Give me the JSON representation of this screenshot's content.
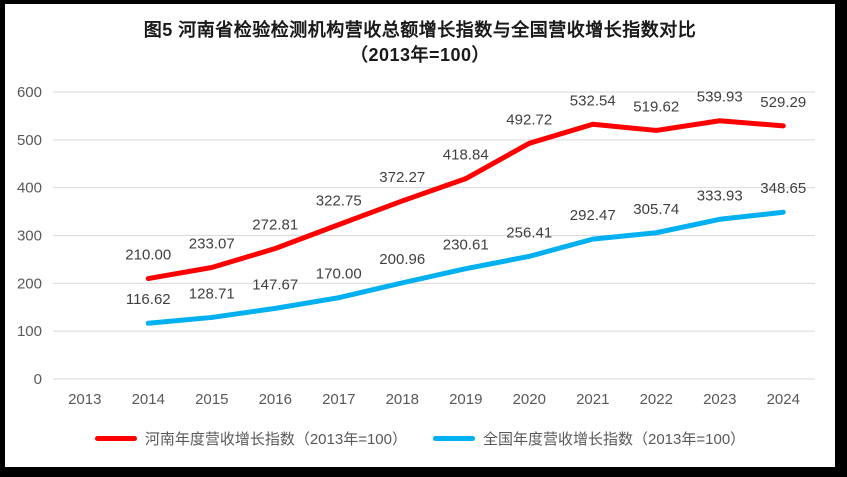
{
  "title": {
    "line1": "图5  河南省检验检测机构营收总额增长指数与全国营收增长指数对比",
    "line2": "（2013年=100）"
  },
  "colors": {
    "henan_line": "#FF0000",
    "national_line": "#00B0F0",
    "gridline": "#D9D9D9",
    "axis_text": "#595959",
    "data_label_text": "#404040",
    "title_text": "#1a1a1a",
    "frame": "#000000",
    "background": "#ffffff"
  },
  "chart_data": {
    "type": "line",
    "title": "图5 河南省检验检测机构营收总额增长指数与全国营收增长指数对比（2013年=100）",
    "x": [
      "2013",
      "2014",
      "2015",
      "2016",
      "2017",
      "2018",
      "2019",
      "2020",
      "2021",
      "2022",
      "2023",
      "2024"
    ],
    "series": [
      {
        "name": "河南年度营收增长指数（2013年=100）",
        "color_key": "henan_line",
        "values": [
          null,
          210.0,
          233.07,
          272.81,
          322.75,
          372.27,
          418.84,
          492.72,
          532.54,
          519.62,
          539.93,
          529.29
        ]
      },
      {
        "name": "全国年度营收增长指数（2013年=100）",
        "color_key": "national_line",
        "values": [
          null,
          116.62,
          128.71,
          147.67,
          170.0,
          200.96,
          230.61,
          256.41,
          292.47,
          305.74,
          333.93,
          348.65
        ]
      }
    ],
    "ylim": [
      0,
      600
    ],
    "ytick_step": 100,
    "y_tick_labels": [
      "0",
      "100",
      "200",
      "300",
      "400",
      "500",
      "600"
    ],
    "grid": true,
    "legend_position": "bottom",
    "data_labels": "above",
    "data_label_format": "2-decimals"
  }
}
